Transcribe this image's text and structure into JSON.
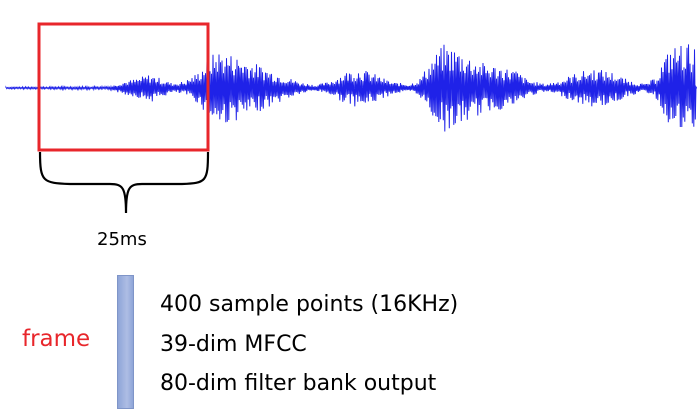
{
  "colors": {
    "waveform": "#1f22e8",
    "window_box": "#e8262b",
    "frame_label": "#e8262b",
    "frame_bar": "#9aafdc",
    "text": "#000000"
  },
  "waveform": {
    "icon": "audio-waveform"
  },
  "window": {
    "duration_label": "25ms"
  },
  "frame": {
    "label": "frame",
    "features": [
      "400 sample points (16KHz)",
      "39-dim MFCC",
      "80-dim filter bank output"
    ]
  }
}
